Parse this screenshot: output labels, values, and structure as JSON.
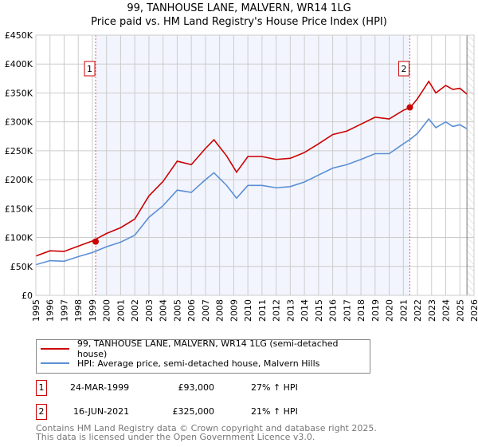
{
  "chart_data": {
    "type": "line",
    "title": "99, TANHOUSE LANE, MALVERN, WR14 1LG",
    "subtitle": "Price paid vs. HM Land Registry's House Price Index (HPI)",
    "xlim": [
      1995,
      2026
    ],
    "ylim": [
      0,
      450000
    ],
    "y_ticks": [
      {
        "v": 0,
        "label": "£0"
      },
      {
        "v": 50000,
        "label": "£50K"
      },
      {
        "v": 100000,
        "label": "£100K"
      },
      {
        "v": 150000,
        "label": "£150K"
      },
      {
        "v": 200000,
        "label": "£200K"
      },
      {
        "v": 250000,
        "label": "£250K"
      },
      {
        "v": 300000,
        "label": "£300K"
      },
      {
        "v": 350000,
        "label": "£350K"
      },
      {
        "v": 400000,
        "label": "£400K"
      },
      {
        "v": 450000,
        "label": "£450K"
      }
    ],
    "x_ticks": [
      "1995",
      "1996",
      "1997",
      "1998",
      "1999",
      "2000",
      "2001",
      "2002",
      "2003",
      "2004",
      "2005",
      "2006",
      "2007",
      "2008",
      "2009",
      "2010",
      "2011",
      "2012",
      "2013",
      "2014",
      "2015",
      "2016",
      "2017",
      "2018",
      "2019",
      "2020",
      "2021",
      "2022",
      "2023",
      "2024",
      "2025",
      "2026"
    ],
    "grid": true,
    "shaded_range": [
      1999.23,
      2021.46
    ],
    "hatched_from": 2025.5,
    "series": [
      {
        "name": "99, TANHOUSE LANE, MALVERN, WR14 1LG (semi-detached house)",
        "color": "#cc0000",
        "x": [
          1995,
          1996,
          1997,
          1998,
          1999,
          2000,
          2001,
          2002,
          2003,
          2004,
          2005,
          2006,
          2007,
          2007.6,
          2008.5,
          2009.2,
          2010,
          2011,
          2012,
          2013,
          2014,
          2015,
          2016,
          2017,
          2018,
          2019,
          2020,
          2021,
          2021.5,
          2022,
          2022.8,
          2023.3,
          2024,
          2024.5,
          2025,
          2025.5
        ],
        "y": [
          68000,
          77000,
          76000,
          85000,
          94000,
          107000,
          117000,
          132000,
          172000,
          197000,
          232000,
          226000,
          254000,
          269000,
          241000,
          213000,
          240000,
          240000,
          235000,
          237000,
          247000,
          262000,
          278000,
          284000,
          296000,
          308000,
          305000,
          320000,
          325000,
          340000,
          370000,
          350000,
          363000,
          356000,
          358000,
          348000
        ]
      },
      {
        "name": "HPI: Average price, semi-detached house, Malvern Hills",
        "color": "#5b8fd4",
        "x": [
          1995,
          1996,
          1997,
          1998,
          1999,
          2000,
          2001,
          2002,
          2003,
          2004,
          2005,
          2006,
          2007,
          2007.6,
          2008.5,
          2009.2,
          2010,
          2011,
          2012,
          2013,
          2014,
          2015,
          2016,
          2017,
          2018,
          2019,
          2020,
          2021,
          2021.5,
          2022,
          2022.8,
          2023.3,
          2024,
          2024.5,
          2025,
          2025.5
        ],
        "y": [
          53000,
          60000,
          59000,
          67000,
          74000,
          84000,
          92000,
          104000,
          135000,
          155000,
          182000,
          178000,
          200000,
          212000,
          190000,
          168000,
          190000,
          190000,
          186000,
          188000,
          196000,
          208000,
          220000,
          226000,
          235000,
          245000,
          245000,
          262000,
          270000,
          280000,
          305000,
          290000,
          300000,
          292000,
          295000,
          288000
        ]
      }
    ],
    "sales": [
      {
        "id": "1",
        "x": 1999.23,
        "y": 93000,
        "date": "24-MAR-1999",
        "price": "£93,000",
        "hpi": "27% ↑ HPI"
      },
      {
        "id": "2",
        "x": 2021.46,
        "y": 325000,
        "date": "16-JUN-2021",
        "price": "£325,000",
        "hpi": "21% ↑ HPI"
      }
    ]
  },
  "footer": [
    "Contains HM Land Registry data © Crown copyright and database right 2025.",
    "This data is licensed under the Open Government Licence v3.0."
  ]
}
